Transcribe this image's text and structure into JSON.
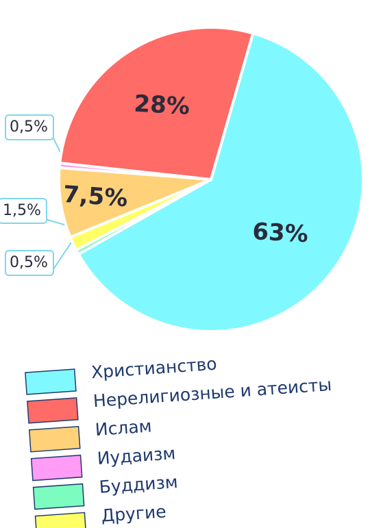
{
  "chart_data": {
    "type": "pie",
    "categories": [
      "Христианство",
      "Нерелигиозные и атеисты",
      "Ислам",
      "Иудаизм",
      "Буддизм",
      "Другие"
    ],
    "values": [
      63,
      28,
      7.5,
      0.5,
      0.5,
      1.5
    ],
    "value_labels": [
      "63%",
      "28%",
      "7,5%",
      "0,5%",
      "0,5%",
      "1,5%"
    ],
    "colors": [
      "#80f8ff",
      "#ff6b66",
      "#ffd27a",
      "#ff9cf5",
      "#7dfcc0",
      "#ffff66"
    ]
  }
}
